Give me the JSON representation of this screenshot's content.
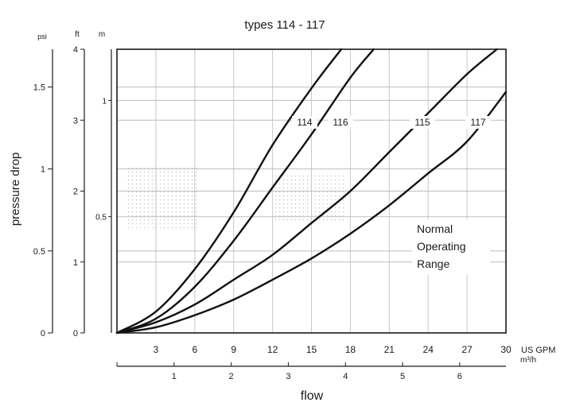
{
  "chart_data": {
    "type": "line",
    "title": "types 114 - 117",
    "ylabel": "pressure drop",
    "xlabel": "flow",
    "axes": {
      "psi": {
        "label": "psi",
        "ticks": [
          0,
          0.5,
          1,
          1.5
        ],
        "range": [
          0,
          1.73
        ]
      },
      "ft": {
        "label": "ft",
        "ticks": [
          0,
          1,
          2,
          3,
          4
        ],
        "range": [
          0,
          4
        ]
      },
      "m": {
        "label": "m",
        "ticks": [
          0.5,
          1
        ],
        "range": [
          0,
          1.22
        ]
      },
      "gpm": {
        "label": "US GPM",
        "ticks": [
          3,
          6,
          9,
          12,
          15,
          18,
          21,
          24,
          27,
          30
        ],
        "range": [
          0,
          30
        ]
      },
      "m3h": {
        "label": "m³/h",
        "ticks": [
          1,
          2,
          3,
          4,
          5,
          6
        ],
        "range": [
          0,
          6.81
        ]
      }
    },
    "x_unit": "US GPM",
    "y_unit": "ft",
    "series": [
      {
        "name": "114",
        "x": [
          0,
          3,
          6,
          9,
          12,
          15,
          17.3
        ],
        "y": [
          0,
          0.3,
          0.9,
          1.7,
          2.65,
          3.45,
          4.0
        ]
      },
      {
        "name": "116",
        "x": [
          0,
          3,
          6,
          9,
          12,
          15,
          18,
          19.8
        ],
        "y": [
          0,
          0.2,
          0.65,
          1.3,
          2.05,
          2.8,
          3.6,
          4.0
        ]
      },
      {
        "name": "115",
        "x": [
          0,
          3,
          6,
          9,
          12,
          15,
          18,
          21,
          24,
          27,
          29.3
        ],
        "y": [
          0,
          0.15,
          0.4,
          0.75,
          1.1,
          1.55,
          2.0,
          2.55,
          3.1,
          3.65,
          4.0
        ]
      },
      {
        "name": "117",
        "x": [
          0,
          3,
          6,
          9,
          12,
          15,
          18,
          21,
          24,
          27,
          30
        ],
        "y": [
          0,
          0.08,
          0.25,
          0.47,
          0.75,
          1.05,
          1.4,
          1.8,
          2.25,
          2.7,
          3.4
        ]
      }
    ],
    "annotation": {
      "lines": [
        "Normal",
        "Operating",
        "Range"
      ]
    },
    "grid": true
  }
}
